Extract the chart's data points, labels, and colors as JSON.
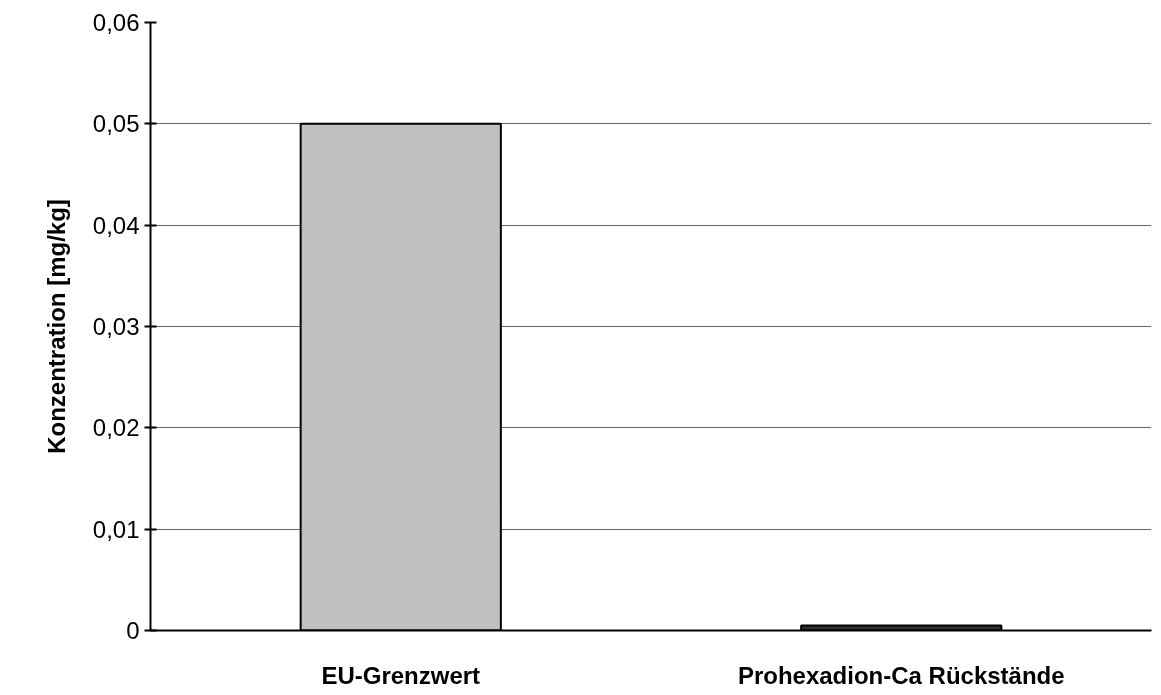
{
  "chart_data": {
    "type": "bar",
    "ylabel": "Konzentration [mg/kg]",
    "categories": [
      "EU-Grenzwert",
      "Prohexadion-Ca Rückstände"
    ],
    "values": [
      0.05,
      0.0005
    ],
    "colors": [
      "#c0c0c0",
      "#333333"
    ],
    "ylim": [
      0,
      0.06
    ],
    "yticks": [
      {
        "value": 0,
        "label": "0"
      },
      {
        "value": 0.01,
        "label": "0,01"
      },
      {
        "value": 0.02,
        "label": "0,02"
      },
      {
        "value": 0.03,
        "label": "0,03"
      },
      {
        "value": 0.04,
        "label": "0,04"
      },
      {
        "value": 0.05,
        "label": "0,05"
      },
      {
        "value": 0.06,
        "label": "0,06"
      }
    ],
    "grid": "y"
  }
}
